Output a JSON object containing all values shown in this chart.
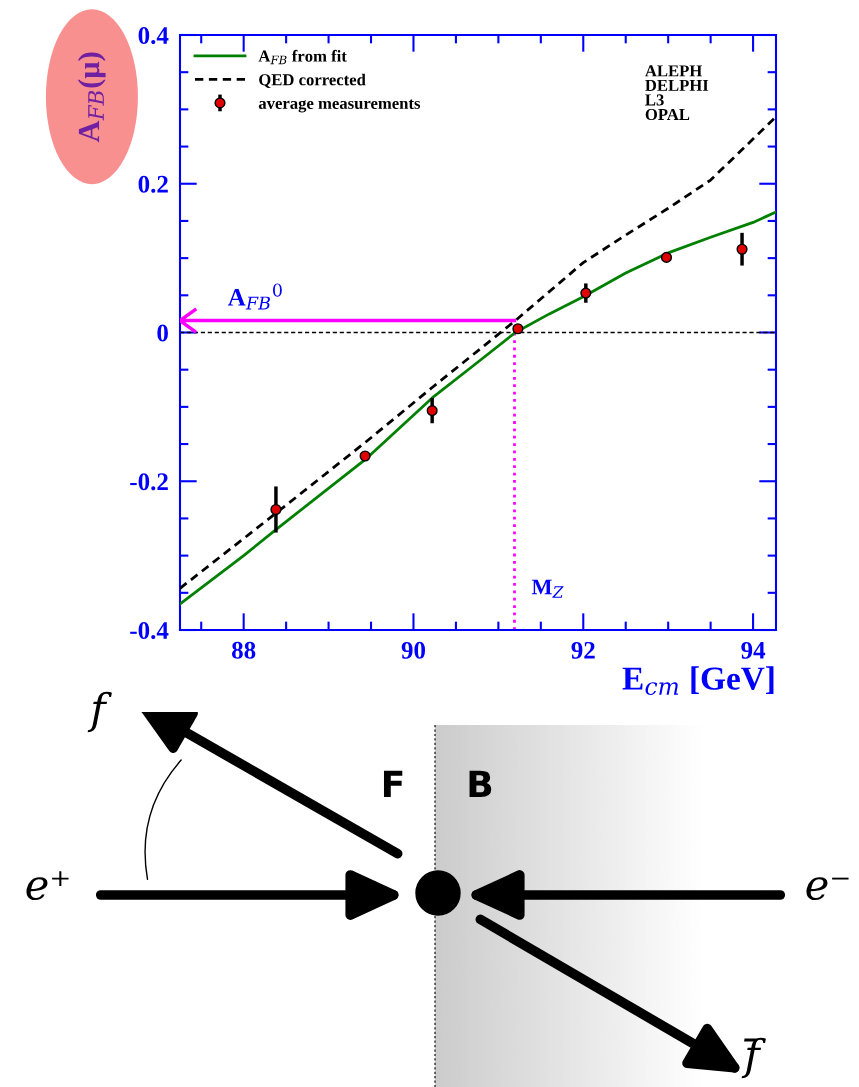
{
  "chart_data": {
    "type": "line",
    "xlabel": "E$_{cm}$ [GeV]",
    "ylabel": "A$_{FB}$(μ)",
    "xlim": [
      87.25,
      94.27
    ],
    "xticks": [
      88,
      90,
      92,
      94
    ],
    "ylim": [
      -0.4,
      0.4
    ],
    "yticks": [
      {
        "value": -0.4,
        "label": "-0.4"
      },
      {
        "value": -0.2,
        "label": "-0.2"
      },
      0,
      0.2,
      0.4
    ],
    "grid": false,
    "legend": "top left",
    "series": [
      {
        "name": "A$_{FB}$ from fit",
        "color": "#008000",
        "line_style": "solid",
        "x": [
          87.25,
          88.0,
          88.38,
          89.43,
          90.22,
          90.7,
          91.2,
          91.6,
          92.0,
          92.5,
          93.0,
          93.5,
          94.0,
          94.27
        ],
        "values": [
          -0.365,
          -0.3,
          -0.265,
          -0.171,
          -0.088,
          -0.045,
          0.0,
          0.025,
          0.048,
          0.08,
          0.107,
          0.128,
          0.148,
          0.162
        ]
      },
      {
        "name": "QED corrected",
        "color": "#000000",
        "line_style": "dashed",
        "x": [
          87.25,
          88.38,
          89.43,
          90.22,
          91.2,
          92.0,
          92.5,
          93.0,
          93.5,
          94.27
        ],
        "values": [
          -0.344,
          -0.243,
          -0.148,
          -0.074,
          0.016,
          0.094,
          0.131,
          0.167,
          0.205,
          0.29
        ]
      },
      {
        "name": "average measurements",
        "type": "scatter",
        "color": "#e00000",
        "marker": "circle",
        "x": [
          88.38,
          89.43,
          90.22,
          91.23,
          92.03,
          92.98,
          93.87
        ],
        "values": [
          -0.238,
          -0.166,
          -0.105,
          0.005,
          0.053,
          0.101,
          0.112
        ],
        "errors": [
          0.031,
          0.005,
          0.017,
          0.005,
          0.013,
          0.005,
          0.022
        ]
      }
    ],
    "ref_lines": [
      {
        "axis": "y",
        "value": 0,
        "color": "#000000",
        "line_style": "dashed"
      },
      {
        "axis": "y",
        "value": 0.016,
        "label": "A$_{FB}$$^{0}$",
        "color": "#ff00ff",
        "line_style": "solid"
      },
      {
        "axis": "x",
        "value": 91.19,
        "label": "M$_{Z}$",
        "color": "#ff00ff",
        "line_style": "dotted"
      }
    ],
    "annotations": [
      "ALEPH\nDELPHI\nL3\nOPAL",
      "f",
      "F",
      "B",
      "e⁺",
      "e⁻",
      "f̄"
    ]
  }
}
